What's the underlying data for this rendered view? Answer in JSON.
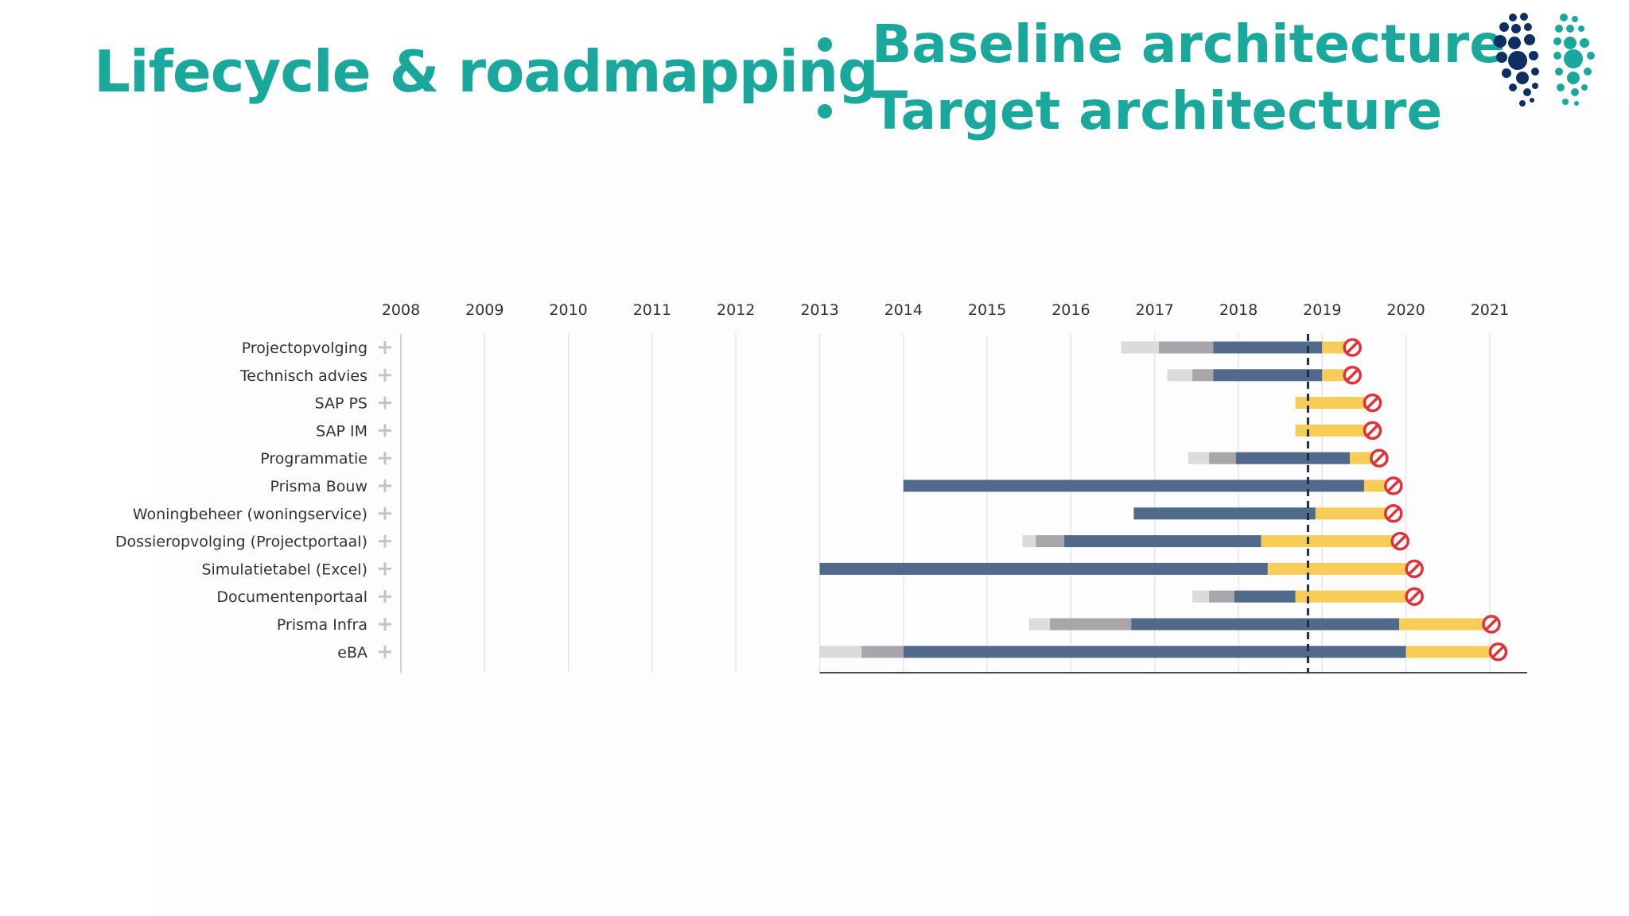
{
  "slide": {
    "title": "Lifecycle & roadmapping",
    "bullets": [
      "Baseline architecture",
      "Target architecture"
    ]
  },
  "colors": {
    "accent": "#1aa79c",
    "logo_dark": "#0f2f63",
    "planned": "#dcdadc",
    "phase_in": "#a8a6aa",
    "active": "#516a8c",
    "phase_out": "#f8cd57",
    "end_of_life": "#e0323c",
    "today_line": "#1c2e3a"
  },
  "chart_data": {
    "type": "gantt",
    "x_axis_labels": [
      "2008",
      "2009",
      "2010",
      "2011",
      "2012",
      "2013",
      "2014",
      "2015",
      "2016",
      "2017",
      "2018",
      "2019",
      "2020",
      "2021"
    ],
    "xlim": [
      2008,
      2022
    ],
    "today_marker": 2018.83,
    "phases": [
      "planned",
      "phase_in",
      "active",
      "phase_out",
      "end_of_life"
    ],
    "rows": [
      {
        "label": "Projectopvolging",
        "planned": [
          2016.6,
          2017.05
        ],
        "phase_in": [
          2017.05,
          2017.7
        ],
        "active": [
          2017.7,
          2019.0
        ],
        "phase_out": [
          2019.0,
          2019.28
        ],
        "end_of_life": 2019.36
      },
      {
        "label": "Technisch advies",
        "planned": [
          2017.15,
          2017.45
        ],
        "phase_in": [
          2017.45,
          2017.7
        ],
        "active": [
          2017.7,
          2019.0
        ],
        "phase_out": [
          2019.0,
          2019.28
        ],
        "end_of_life": 2019.36
      },
      {
        "label": "SAP PS",
        "planned": null,
        "phase_in": null,
        "active": null,
        "phase_out": [
          2018.68,
          2019.55
        ],
        "end_of_life": 2019.6
      },
      {
        "label": "SAP IM",
        "planned": null,
        "phase_in": null,
        "active": null,
        "phase_out": [
          2018.68,
          2019.55
        ],
        "end_of_life": 2019.6
      },
      {
        "label": "Programmatie",
        "planned": [
          2017.4,
          2017.65
        ],
        "phase_in": [
          2017.65,
          2017.97
        ],
        "active": [
          2017.97,
          2019.33
        ],
        "phase_out": [
          2019.33,
          2019.6
        ],
        "end_of_life": 2019.68
      },
      {
        "label": "Prisma Bouw",
        "planned": null,
        "phase_in": null,
        "active": [
          2014.0,
          2019.5
        ],
        "phase_out": [
          2019.5,
          2019.75
        ],
        "end_of_life": 2019.85
      },
      {
        "label": "Woningbeheer (woningservice)",
        "planned": null,
        "phase_in": null,
        "active": [
          2016.75,
          2018.92
        ],
        "phase_out": [
          2018.92,
          2019.78
        ],
        "end_of_life": 2019.85
      },
      {
        "label": "Dossieropvolging (Projectportaal)",
        "planned": [
          2015.42,
          2015.58
        ],
        "phase_in": [
          2015.58,
          2015.92
        ],
        "active": [
          2015.92,
          2018.27
        ],
        "phase_out": [
          2018.27,
          2019.85
        ],
        "end_of_life": 2019.93
      },
      {
        "label": "Simulatietabel (Excel)",
        "planned": null,
        "phase_in": null,
        "active": [
          2013.0,
          2018.35
        ],
        "phase_out": [
          2018.35,
          2020.0
        ],
        "end_of_life": 2020.1
      },
      {
        "label": "Documentenportaal",
        "planned": [
          2017.45,
          2017.65
        ],
        "phase_in": [
          2017.65,
          2017.95
        ],
        "active": [
          2017.95,
          2018.68
        ],
        "phase_out": [
          2018.68,
          2020.0
        ],
        "end_of_life": 2020.1
      },
      {
        "label": "Prisma Infra",
        "planned": [
          2015.5,
          2015.75
        ],
        "phase_in": [
          2015.75,
          2016.72
        ],
        "active": [
          2016.72,
          2019.92
        ],
        "phase_out": [
          2019.92,
          2020.92
        ],
        "end_of_life": 2021.02
      },
      {
        "label": "eBA",
        "planned": [
          2013.0,
          2013.5
        ],
        "phase_in": [
          2013.5,
          2014.0
        ],
        "active": [
          2014.0,
          2020.0
        ],
        "phase_out": [
          2020.0,
          2021.0
        ],
        "end_of_life": 2021.1
      }
    ]
  }
}
